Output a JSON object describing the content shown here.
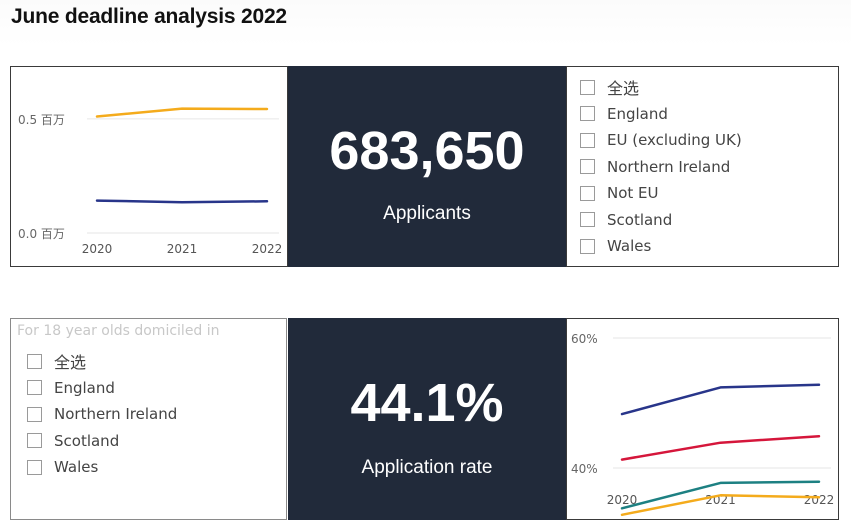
{
  "page": {
    "title": "June deadline analysis 2022"
  },
  "kpi_applicants": {
    "value": "683,650",
    "label": "Applicants"
  },
  "kpi_rate": {
    "value": "44.1%",
    "label": "Application rate"
  },
  "slicer_top": {
    "items": [
      "全选",
      "England",
      "EU (excluding UK)",
      "Northern Ireland",
      "Not EU",
      "Scotland",
      "Wales"
    ]
  },
  "slicer_bottom": {
    "header": "For 18 year olds domiciled in",
    "items": [
      "全选",
      "England",
      "Northern Ireland",
      "Scotland",
      "Wales"
    ]
  },
  "colors": {
    "navy": "#28358a",
    "orange": "#f4ab1c",
    "red": "#d5163b",
    "teal": "#1d8082",
    "kpi_bg": "#212a3a"
  },
  "chart_data": [
    {
      "type": "line",
      "x": [
        "2020",
        "2021",
        "2022"
      ],
      "ylim": [
        0,
        0.6
      ],
      "yticks": [
        0.0,
        0.5
      ],
      "ytick_labels": [
        "0.0 百万",
        "0.5 百万"
      ],
      "grid": true,
      "series": [
        {
          "color": "#f4ab1c",
          "values": [
            0.51,
            0.545,
            0.543
          ]
        },
        {
          "color": "#28358a",
          "values": [
            0.142,
            0.135,
            0.139
          ]
        }
      ]
    },
    {
      "type": "line",
      "x": [
        "2020",
        "2021",
        "2022"
      ],
      "ylim": [
        30,
        60
      ],
      "yticks": [
        40,
        60
      ],
      "ytick_labels": [
        "40%",
        "60%"
      ],
      "grid": true,
      "series": [
        {
          "color": "#28358a",
          "values": [
            48.3,
            52.4,
            52.8
          ]
        },
        {
          "color": "#d5163b",
          "values": [
            41.3,
            43.9,
            44.9
          ]
        },
        {
          "color": "#1d8082",
          "values": [
            33.8,
            37.7,
            37.9
          ]
        },
        {
          "color": "#f4ab1c",
          "values": [
            32.8,
            35.8,
            35.5
          ]
        }
      ]
    }
  ]
}
